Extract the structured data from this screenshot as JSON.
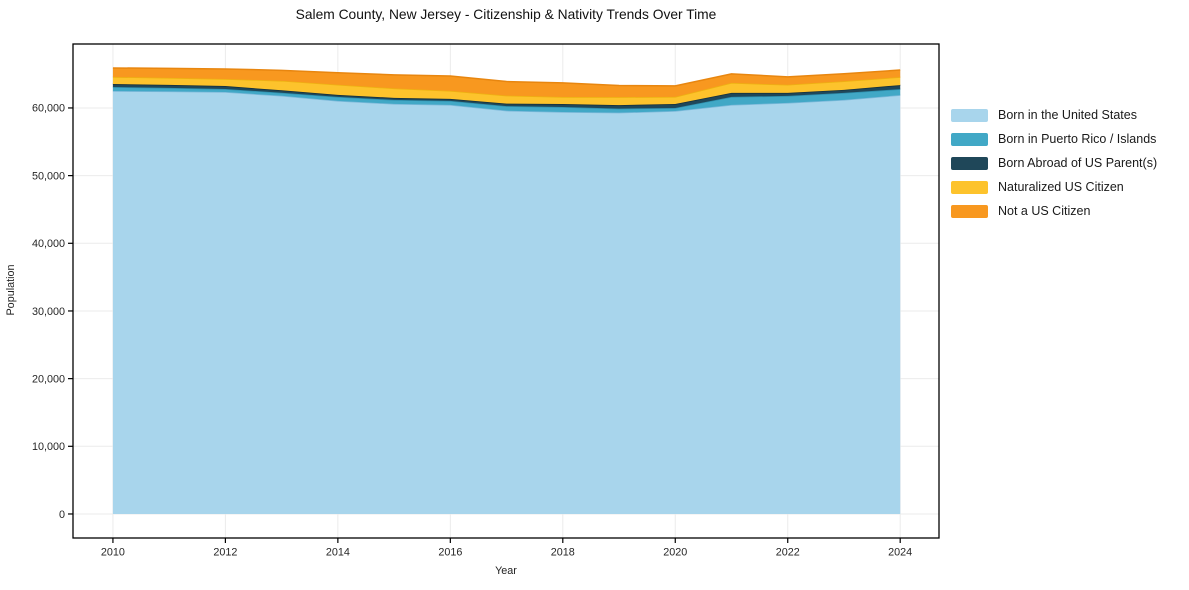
{
  "chart_data": {
    "type": "area",
    "stacked": true,
    "title": "Salem County, New Jersey - Citizenship & Nativity Trends Over Time",
    "xlabel": "Year",
    "ylabel": "Population",
    "x": [
      2010,
      2011,
      2012,
      2013,
      2014,
      2015,
      2016,
      2017,
      2018,
      2019,
      2020,
      2021,
      2022,
      2023,
      2024
    ],
    "series": [
      {
        "name": "Born in the United States",
        "color": "#a8d5ec",
        "edge": "#7db9da",
        "values": [
          62500,
          62450,
          62350,
          61800,
          61050,
          60600,
          60450,
          59600,
          59400,
          59300,
          59550,
          60450,
          60750,
          61200,
          61900
        ]
      },
      {
        "name": "Born in Puerto Rico / Islands",
        "color": "#41a8c6",
        "edge": "#2e8fad",
        "values": [
          590,
          520,
          450,
          440,
          590,
          590,
          590,
          670,
          740,
          600,
          450,
          1180,
          1040,
          1030,
          880
        ]
      },
      {
        "name": "Born Abroad of US Parent(s)",
        "color": "#1f4759",
        "edge": "#152f3c",
        "values": [
          450,
          440,
          440,
          370,
          300,
          300,
          300,
          370,
          440,
          520,
          590,
          590,
          440,
          450,
          600
        ]
      },
      {
        "name": "Naturalized US Citizen",
        "color": "#fdc32c",
        "edge": "#edb211",
        "values": [
          1040,
          1040,
          1040,
          1400,
          1480,
          1400,
          1180,
          1190,
          1040,
          1180,
          1040,
          1480,
          1190,
          1260,
          1180
        ]
      },
      {
        "name": "Not a US Citizen",
        "color": "#f8981f",
        "edge": "#e8860f",
        "values": [
          1330,
          1400,
          1480,
          1550,
          1780,
          2000,
          2200,
          2070,
          2080,
          1710,
          1630,
          1330,
          1180,
          1110,
          1040
        ]
      }
    ],
    "x_ticks": {
      "values": [
        2010,
        2012,
        2014,
        2016,
        2018,
        2020,
        2022,
        2024
      ],
      "labels": [
        "2010",
        "2012",
        "2014",
        "2016",
        "2018",
        "2020",
        "2022",
        "2024"
      ]
    },
    "y_ticks": {
      "values": [
        0,
        10000,
        20000,
        30000,
        40000,
        50000,
        60000
      ],
      "labels": [
        "0",
        "10,000",
        "20,000",
        "30,000",
        "40,000",
        "50,000",
        "60,000"
      ]
    },
    "xlim": [
      2009.29,
      2024.69
    ],
    "ylim": [
      -3550,
      69450
    ],
    "grid": true,
    "grid_color": "#ebebeb",
    "frame_color": "#000000",
    "tick_color": "#000000",
    "legend_position": "right"
  }
}
